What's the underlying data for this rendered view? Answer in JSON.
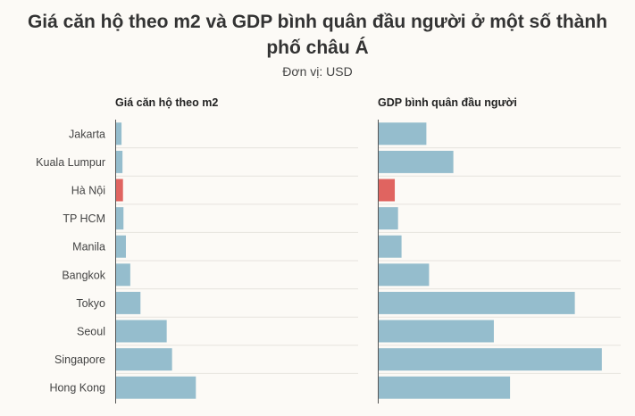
{
  "title": "Giá căn hộ theo m2 và GDP bình quân đầu người ở một số thành phố châu Á",
  "subtitle": "Đơn vị: USD",
  "colors": {
    "default": "#95bdcd",
    "highlight": "#e06460",
    "background": "#fcfaf6",
    "grid": "#e6e3dd",
    "axis": "#555555"
  },
  "chart_data": [
    {
      "type": "bar",
      "orientation": "horizontal",
      "title": "Giá căn hộ theo m2",
      "categories": [
        "Jakarta",
        "Kuala Lumpur",
        "Hà Nội",
        "TP HCM",
        "Manila",
        "Bangkok",
        "Tokyo",
        "Seoul",
        "Singapore",
        "Hong Kong"
      ],
      "values": [
        650,
        750,
        800,
        850,
        1100,
        1550,
        2600,
        5300,
        5850,
        8300
      ],
      "xlim": [
        0,
        25000
      ],
      "highlight": "Hà Nội",
      "grid": true
    },
    {
      "type": "bar",
      "orientation": "horizontal",
      "title": "GDP bình quân đầu người",
      "categories": [
        "Jakarta",
        "Kuala Lumpur",
        "Hà Nội",
        "TP HCM",
        "Manila",
        "Bangkok",
        "Tokyo",
        "Seoul",
        "Singapore",
        "Hong Kong"
      ],
      "values": [
        18000,
        28000,
        6300,
        7500,
        8800,
        19000,
        73000,
        43000,
        83000,
        49000
      ],
      "xlim": [
        0,
        90000
      ],
      "highlight": "Hà Nội",
      "grid": true
    }
  ]
}
